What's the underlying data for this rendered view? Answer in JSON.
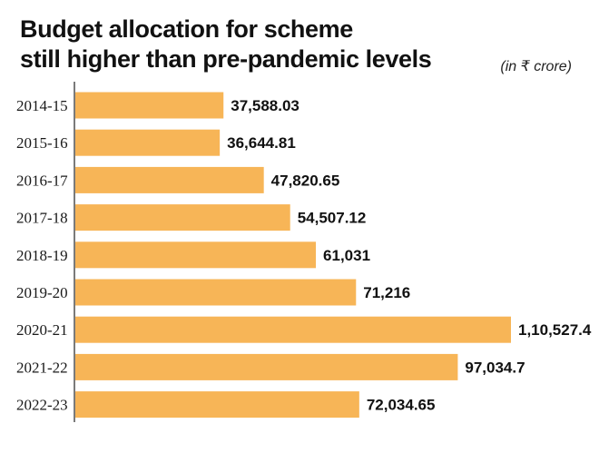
{
  "header": {
    "title": "Budget allocation for scheme\nstill higher than pre-pandemic levels",
    "unit": "(in ₹ crore)"
  },
  "colors": {
    "bar": "#F7B557",
    "axis": "#333333"
  },
  "chart_data": {
    "type": "bar",
    "orientation": "horizontal",
    "title": "Budget allocation for scheme still higher than pre-pandemic levels",
    "unit": "(in ₹ crore)",
    "categories": [
      "2014-15",
      "2015-16",
      "2016-17",
      "2017-18",
      "2018-19",
      "2019-20",
      "2020-21",
      "2021-22",
      "2022-23"
    ],
    "values": [
      37588.03,
      36644.81,
      47820.65,
      54507.12,
      61031,
      71216,
      110527.4,
      97034.7,
      72034.65
    ],
    "value_labels": [
      "37,588.03",
      "36,644.81",
      "47,820.65",
      "54,507.12",
      "61,031",
      "71,216",
      "1,10,527.4",
      "97,034.7",
      "72,034.65"
    ],
    "xlim": [
      0,
      110527.4
    ],
    "grid": false,
    "legend": "none"
  }
}
